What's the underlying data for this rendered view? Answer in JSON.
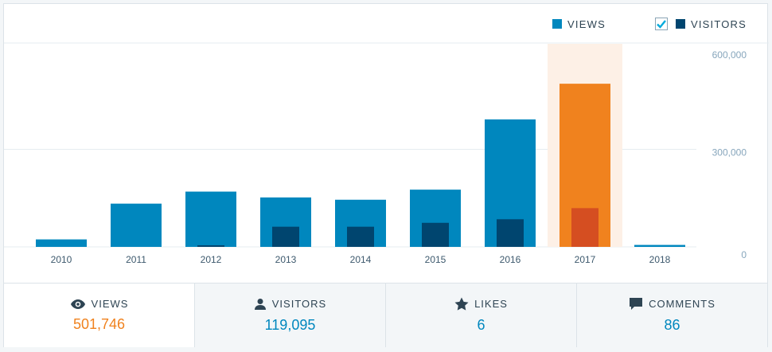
{
  "legend": {
    "views_label": "VIEWS",
    "visitors_label": "VISITORS",
    "visitors_checked": true
  },
  "colors": {
    "views": "#0087be",
    "visitors": "#00456f",
    "highlight_views": "#f0821e",
    "highlight_visitors": "#d54e21",
    "highlight_band": "#fdf0e6",
    "grid": "#e6ecf0"
  },
  "chart_data": {
    "type": "bar",
    "categories": [
      "2010",
      "2011",
      "2012",
      "2013",
      "2014",
      "2015",
      "2016",
      "2017",
      "2018"
    ],
    "series": [
      {
        "name": "VIEWS",
        "values": [
          23000,
          133000,
          170000,
          152000,
          145000,
          176000,
          392000,
          501746,
          6000
        ]
      },
      {
        "name": "VISITORS",
        "values": [
          0,
          0,
          5000,
          62000,
          62000,
          74000,
          85000,
          119095,
          0
        ]
      }
    ],
    "highlight_category": "2017",
    "y_ticks": [
      {
        "value": 600000,
        "label": "600,000"
      },
      {
        "value": 300000,
        "label": "300,000"
      },
      {
        "value": 0,
        "label": "0"
      }
    ],
    "ylim": [
      0,
      600000
    ],
    "grid": true,
    "legend_position": "top-right"
  },
  "stats": [
    {
      "icon": "eye-icon",
      "label": "VIEWS",
      "value": "501,746"
    },
    {
      "icon": "person-icon",
      "label": "VISITORS",
      "value": "119,095"
    },
    {
      "icon": "star-icon",
      "label": "LIKES",
      "value": "6"
    },
    {
      "icon": "comment-icon",
      "label": "COMMENTS",
      "value": "86"
    }
  ]
}
